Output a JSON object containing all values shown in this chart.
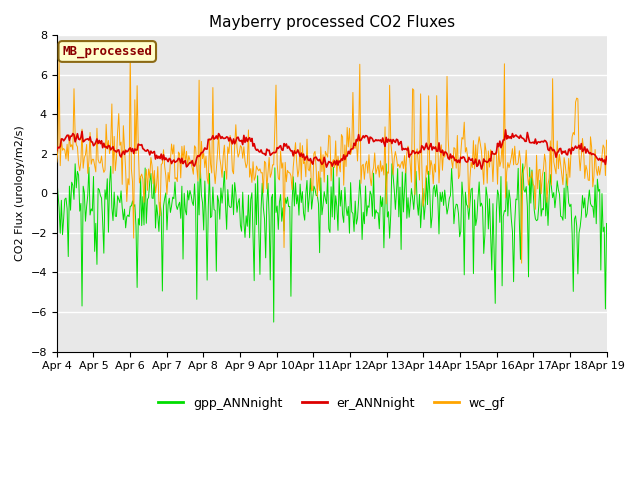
{
  "title": "Mayberry processed CO2 Fluxes",
  "ylabel": "CO2 Flux (urology/m2/s)",
  "ylim": [
    -8,
    8
  ],
  "yticks": [
    -8,
    -6,
    -4,
    -2,
    0,
    2,
    4,
    6,
    8
  ],
  "date_labels": [
    "Apr 4",
    "Apr 5",
    "Apr 6",
    "Apr 7",
    "Apr 8",
    "Apr 9",
    "Apr 10",
    "Apr 11",
    "Apr 12",
    "Apr 13",
    "Apr 14",
    "Apr 15",
    "Apr 16",
    "Apr 17",
    "Apr 18",
    "Apr 19"
  ],
  "n_points": 480,
  "gpp_color": "#00dd00",
  "er_color": "#dd0000",
  "wc_color": "#ffa500",
  "plot_bg_color": "#e8e8e8",
  "fig_bg_color": "#ffffff",
  "legend_label": "MB_processed",
  "legend_label_color": "#8b0000",
  "legend_box_facecolor": "#ffffcc",
  "legend_box_edgecolor": "#8b6914",
  "linewidth_gpp": 0.7,
  "linewidth_er": 1.2,
  "linewidth_wc": 0.7,
  "title_fontsize": 11,
  "label_fontsize": 8,
  "tick_fontsize": 8,
  "legend_fontsize": 9
}
